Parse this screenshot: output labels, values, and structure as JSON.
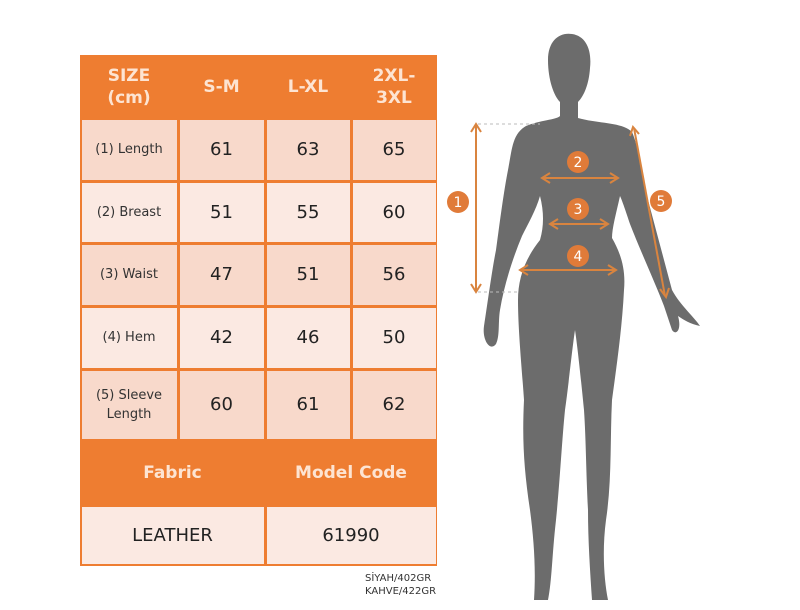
{
  "table": {
    "header": [
      "SIZE (cm)",
      "S-M",
      "L-XL",
      "2XL- 3XL"
    ],
    "header_lines": [
      [
        "SIZE",
        "(cm)"
      ],
      [
        "S-M"
      ],
      [
        "L-XL"
      ],
      [
        "2XL-",
        "3XL"
      ]
    ],
    "rows": [
      {
        "label": "(1) Length",
        "values": [
          "61",
          "63",
          "65"
        ]
      },
      {
        "label": "(2) Breast",
        "values": [
          "51",
          "55",
          "60"
        ]
      },
      {
        "label": "(3) Waist",
        "values": [
          "47",
          "51",
          "56"
        ]
      },
      {
        "label": "(4) Hem",
        "values": [
          "42",
          "46",
          "50"
        ]
      },
      {
        "label": "(5) Sleeve Length",
        "values": [
          "60",
          "61",
          "62"
        ]
      }
    ],
    "footer_headers": [
      "Fabric",
      "Model Code"
    ],
    "footer_values": [
      "LEATHER",
      "61990"
    ]
  },
  "diagram": {
    "markers": [
      "1",
      "2",
      "3",
      "4",
      "5"
    ]
  },
  "notes": [
    "SİYAH/402GR",
    "KAHVE/422GR"
  ],
  "colors": {
    "accent": "#ee7d31",
    "silhouette": "#6b6b6b",
    "cell": "#f8d9cb"
  }
}
